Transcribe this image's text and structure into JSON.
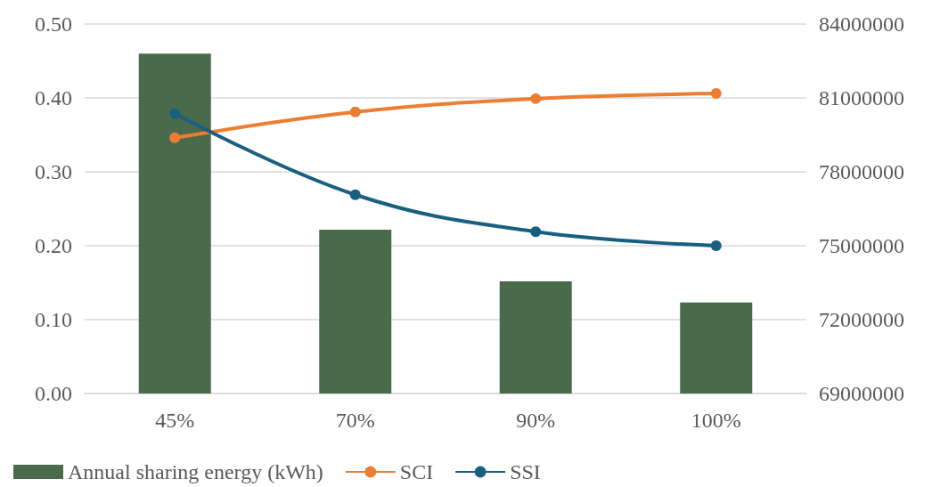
{
  "chart_data": {
    "type": "bar",
    "categories": [
      "45%",
      "70%",
      "90%",
      "100%"
    ],
    "series": [
      {
        "name": "Annual sharing energy (kWh)",
        "axis": "y2",
        "color": "#4a6a4c",
        "values": [
          82800000,
          75650000,
          73550000,
          72700000
        ]
      },
      {
        "name": "SCI",
        "type": "line",
        "color": "#ed7d31",
        "values": [
          0.346,
          0.381,
          0.399,
          0.406
        ]
      },
      {
        "name": "SSI",
        "type": "line",
        "color": "#185f80",
        "values": [
          0.379,
          0.269,
          0.219,
          0.2
        ]
      }
    ],
    "ylim": [
      0,
      0.5
    ],
    "yticks": [
      {
        "value": 0,
        "label": "0.00"
      },
      {
        "value": 0.1,
        "label": "0.10"
      },
      {
        "value": 0.2,
        "label": "0.20"
      },
      {
        "value": 0.3,
        "label": "0.30"
      },
      {
        "value": 0.4,
        "label": "0.40"
      },
      {
        "value": 0.5,
        "label": "0.50"
      }
    ],
    "y2lim": [
      69000000,
      84000000
    ],
    "y2ticks": [
      69000000,
      72000000,
      75000000,
      78000000,
      81000000,
      84000000
    ],
    "grid": "y",
    "legend": "bottom left",
    "marker": "circle",
    "line_style": "solid"
  }
}
